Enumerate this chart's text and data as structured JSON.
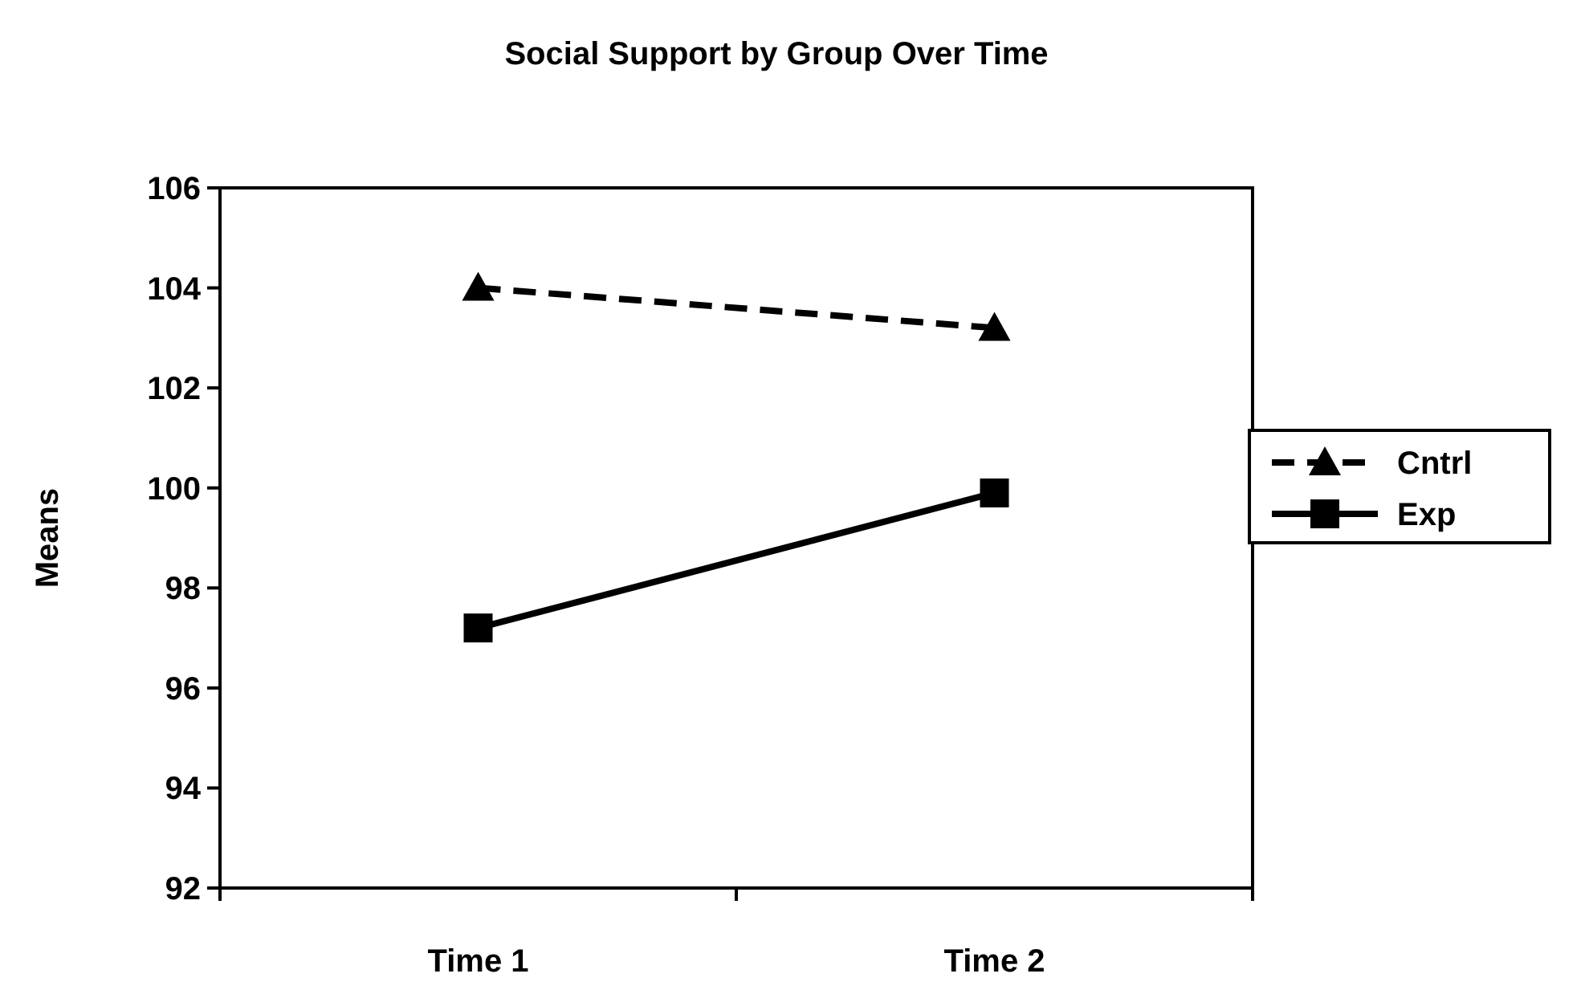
{
  "chart_data": {
    "type": "line",
    "title": "Social Support by Group Over Time",
    "ylabel": "Means",
    "categories": [
      "Time 1",
      "Time 2"
    ],
    "series": [
      {
        "name": "Cntrl",
        "color": "#000000",
        "values": [
          104.0,
          103.2
        ],
        "marker": "triangle",
        "line_style": "dashed"
      },
      {
        "name": "Exp",
        "color": "#000000",
        "values": [
          97.2,
          99.9
        ],
        "marker": "square",
        "line_style": "solid"
      }
    ],
    "ylim": [
      92,
      106
    ],
    "yticks": [
      92,
      94,
      96,
      98,
      100,
      102,
      104,
      106
    ],
    "grid": false,
    "legend": "right"
  }
}
